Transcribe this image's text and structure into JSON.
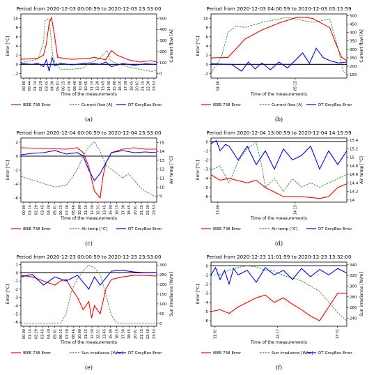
{
  "chart_data": [
    {
      "letter": "(a)",
      "type": "line",
      "title": "Period from 2020-12-03 00:00:59 to 2020-12-03 23:53:00",
      "xlabel": "Time of the measurements",
      "ylabel": "Error [°C]",
      "y2label": "Current flow [A]",
      "ylim": [
        -3,
        11
      ],
      "yticks": [
        -2,
        0,
        2,
        4,
        6,
        8,
        10
      ],
      "y2lim": [
        -40,
        540
      ],
      "y2ticks": [
        0,
        100,
        200,
        300,
        400,
        500
      ],
      "xticks": [
        "00:00",
        "00:44",
        "01:14",
        "02:29",
        "03:45",
        "04:30",
        "05:01",
        "06:15",
        "07:30",
        "08:46",
        "10:00",
        "10:45",
        "11:15",
        "12:30",
        "13:45",
        "14:30",
        "15:00",
        "16:15",
        "17:30",
        "18:45",
        "20:01",
        "21:15",
        "22:30",
        "23:53"
      ],
      "legend": [
        "IEEE 738 Error",
        "Current flow [A]",
        "DT GreyBox Error"
      ],
      "series": [
        {
          "name": "IEEE 738 Error",
          "axis": "left",
          "color": "#ff0000",
          "style": "solid",
          "x": [
            0,
            3,
            4,
            4.5,
            5,
            5.4,
            5.8,
            6.5,
            9,
            12,
            13,
            15,
            16,
            17,
            19,
            21,
            23,
            24
          ],
          "values": [
            1.1,
            1.3,
            2,
            4.5,
            9,
            10.2,
            7.5,
            1.5,
            1.1,
            1.3,
            1.5,
            1.0,
            3.0,
            2.0,
            1.0,
            0.5,
            0.8,
            0.5
          ]
        },
        {
          "name": "Current flow [A]",
          "axis": "right",
          "color": "#2e8b2e",
          "style": "dashed",
          "x": [
            0,
            3,
            4,
            4.3,
            4.6,
            5,
            5.6,
            6,
            7,
            9,
            11,
            12,
            14,
            15.2,
            15.8,
            17,
            19,
            21,
            23,
            24
          ],
          "values": [
            100,
            130,
            280,
            480,
            490,
            495,
            170,
            110,
            40,
            40,
            50,
            90,
            140,
            210,
            120,
            90,
            60,
            40,
            20,
            30
          ]
        },
        {
          "name": "DT GreyBox Error",
          "axis": "left",
          "color": "#0000ff",
          "style": "solid",
          "x": [
            0,
            2,
            3,
            4,
            4.5,
            5,
            5.5,
            6,
            7,
            9,
            12,
            14,
            15,
            16,
            18,
            20,
            22,
            24
          ],
          "values": [
            0.2,
            0.0,
            0.2,
            -0.5,
            1.0,
            -1.5,
            1.5,
            -0.3,
            0.2,
            -0.1,
            0.3,
            0.0,
            0.5,
            -0.5,
            0.2,
            -0.2,
            0.1,
            0.0
          ]
        }
      ]
    },
    {
      "letter": "(b)",
      "type": "line",
      "title": "Period from 2020-12-03 04:00:59 to 2020-12-03 05:15:59",
      "xlabel": "Time of the measurements",
      "ylabel": "Error [°C]",
      "y2label": "Current flow [A]",
      "ylim": [
        -3,
        11
      ],
      "yticks": [
        -2,
        0,
        2,
        4,
        6,
        8,
        10
      ],
      "y2lim": [
        130,
        510
      ],
      "y2ticks": [
        150,
        200,
        250,
        300,
        350,
        400,
        450,
        500
      ],
      "xticks": [
        "04:00",
        "05:15"
      ],
      "legend": [
        "IEEE 738 Error",
        "Current flow [A]",
        "DT GreyBox Error"
      ],
      "series": [
        {
          "name": "IEEE 738 Error",
          "axis": "left",
          "color": "#ff0000",
          "style": "solid",
          "x": [
            0,
            10,
            15,
            20,
            30,
            40,
            50,
            55,
            60,
            70,
            73,
            77,
            80
          ],
          "values": [
            1.4,
            1.5,
            3.5,
            5.5,
            7.5,
            9.0,
            10.2,
            10.3,
            10.0,
            8.0,
            5.0,
            1.5,
            0.8
          ]
        },
        {
          "name": "Current flow [A]",
          "axis": "right",
          "color": "#2e8b2e",
          "style": "dashed",
          "x": [
            0,
            6,
            10,
            15,
            20,
            30,
            40,
            45,
            55,
            60,
            70,
            75,
            78,
            80
          ],
          "values": [
            160,
            250,
            400,
            440,
            430,
            460,
            480,
            490,
            470,
            460,
            480,
            300,
            170,
            150
          ]
        },
        {
          "name": "DT GreyBox Error",
          "axis": "left",
          "color": "#0000ff",
          "style": "solid",
          "x": [
            0,
            12,
            18,
            22,
            26,
            30,
            35,
            40,
            45,
            50,
            54,
            58,
            62,
            66,
            70,
            75,
            80
          ],
          "values": [
            0.1,
            0.0,
            -1.5,
            0.5,
            -1.0,
            0.3,
            -1.2,
            0.5,
            -0.8,
            1.0,
            2.5,
            0.2,
            3.5,
            1.5,
            0.8,
            0.3,
            0.5
          ]
        }
      ]
    },
    {
      "letter": "(c)",
      "type": "line",
      "title": "Period from 2020-12-04 00:00:59 to 2020-12-04 23:53:00",
      "xlabel": "Time of the measurements",
      "ylabel": "Error [°C]",
      "y2label": "Air temp [°C]",
      "ylim": [
        -6.6,
        2.6
      ],
      "yticks": [
        -6,
        -4,
        -2,
        0,
        2
      ],
      "y2lim": [
        8.3,
        15.5
      ],
      "y2ticks": [
        9,
        10,
        11,
        12,
        13,
        14,
        15
      ],
      "xticks": [
        "00:00",
        "01:14",
        "02:29",
        "03:45",
        "04:30",
        "05:01",
        "06:15",
        "07:30",
        "08:46",
        "10:00",
        "11:15",
        "12:30",
        "12:31",
        "13:45",
        "15:00",
        "16:15",
        "17:30",
        "18:45",
        "20:01",
        "21:15",
        "22:30",
        "23:53"
      ],
      "legend": [
        "IEEE 738 Error",
        "Air temp [°C]",
        "DT GreyBox Error"
      ],
      "series": [
        {
          "name": "IEEE 738 Error",
          "axis": "left",
          "color": "#ff0000",
          "style": "solid",
          "x": [
            0,
            4,
            8,
            10,
            11,
            12,
            13,
            14,
            14.5,
            15,
            16,
            18,
            20,
            22,
            24
          ],
          "values": [
            1.2,
            1.1,
            1.0,
            1.2,
            0.5,
            -1.5,
            -5.0,
            -6.0,
            -3.0,
            -1.0,
            0.5,
            1.0,
            1.2,
            1.0,
            1.0
          ]
        },
        {
          "name": "Air temp [°C]",
          "axis": "right",
          "color": "#2e8b2e",
          "style": "dashed",
          "x": [
            0,
            2,
            4,
            6,
            8,
            9,
            10,
            11,
            12,
            13,
            14,
            15,
            16,
            17,
            18,
            19,
            20,
            21,
            22,
            23,
            24
          ],
          "values": [
            11.2,
            10.8,
            10.4,
            10.0,
            10.2,
            11.0,
            12.0,
            13.5,
            14.5,
            15.1,
            14.0,
            12.5,
            12.0,
            11.5,
            11.0,
            11.5,
            10.8,
            10.0,
            9.5,
            9.2,
            8.8
          ]
        },
        {
          "name": "DT GreyBox Error",
          "axis": "left",
          "color": "#0000ff",
          "style": "solid",
          "x": [
            0,
            2,
            4,
            6,
            8,
            10,
            11,
            12,
            13,
            14,
            15,
            16,
            18,
            20,
            22,
            24
          ],
          "values": [
            0.2,
            0.4,
            0.5,
            0.8,
            0.3,
            0.5,
            0.0,
            -2.0,
            -3.5,
            -2.5,
            -1.0,
            0.5,
            0.8,
            0.5,
            0.6,
            0.5
          ]
        }
      ]
    },
    {
      "letter": "(d)",
      "type": "line",
      "title": "Period from 2020-12-04 13:00:59 to 2020-12-04 14:15:59",
      "xlabel": "Time of the measurements",
      "ylabel": "Error [°C]",
      "y2label": "Air temp [°C]",
      "ylim": [
        -6.6,
        0.4
      ],
      "yticks": [
        -6,
        -5,
        -4,
        -3,
        -2,
        -1,
        0
      ],
      "y2lim": [
        13.95,
        15.45
      ],
      "y2ticks": [
        14.0,
        14.2,
        14.4,
        14.6,
        14.8,
        15.0,
        15.2,
        15.4
      ],
      "xticks": [
        "13:00",
        "14:15"
      ],
      "legend": [
        "IEEE 738 Error",
        "Air temp [°C]",
        "DT GreyBox Error"
      ],
      "series": [
        {
          "name": "IEEE 738 Error",
          "axis": "left",
          "color": "#ff0000",
          "style": "solid",
          "x": [
            0,
            5,
            10,
            20,
            25,
            30,
            35,
            40,
            50,
            60,
            65,
            70,
            75
          ],
          "values": [
            -3.6,
            -4.2,
            -4.0,
            -4.5,
            -4.2,
            -5.0,
            -5.5,
            -6.0,
            -6.0,
            -6.2,
            -6.0,
            -5.0,
            -4.6
          ]
        },
        {
          "name": "Air temp [°C]",
          "axis": "right",
          "color": "#2e8b2e",
          "style": "dashed",
          "x": [
            0,
            5,
            10,
            15,
            20,
            25,
            28,
            30,
            35,
            40,
            45,
            50,
            55,
            60,
            65,
            70,
            75
          ],
          "values": [
            14.7,
            14.8,
            14.4,
            14.9,
            15.2,
            15.35,
            14.8,
            14.3,
            14.5,
            14.2,
            14.5,
            14.3,
            14.4,
            14.3,
            14.4,
            14.5,
            14.6
          ]
        },
        {
          "name": "DT GreyBox Error",
          "axis": "left",
          "color": "#0000ff",
          "style": "solid",
          "x": [
            0,
            3,
            5,
            8,
            10,
            15,
            20,
            25,
            30,
            35,
            40,
            45,
            50,
            55,
            60,
            65,
            70,
            75
          ],
          "values": [
            -0.2,
            0.1,
            -1.0,
            -0.3,
            -0.5,
            -2.0,
            -0.5,
            -2.5,
            -1.0,
            -3.0,
            -0.8,
            -2.0,
            -1.5,
            -0.5,
            -3.0,
            -1.0,
            -2.5,
            -1.0
          ]
        }
      ]
    },
    {
      "letter": "(e)",
      "type": "line",
      "title": "Period from 2020-12-23 00:00:59 to 2020-12-23 23:53:00",
      "xlabel": "Time of the measurements",
      "ylabel": "Error [°C]",
      "y2label": "Sun irradiance [W/m]",
      "ylim": [
        -6.5,
        1.3
      ],
      "yticks": [
        -6,
        -5,
        -4,
        -3,
        -2,
        -1,
        0,
        1
      ],
      "y2lim": [
        -15,
        315
      ],
      "y2ticks": [
        0,
        50,
        100,
        150,
        200,
        250,
        300
      ],
      "xticks": [
        "00:00",
        "01:14",
        "02:29",
        "03:45",
        "04:30",
        "05:01",
        "06:15",
        "07:30",
        "08:46",
        "10:00",
        "11:15",
        "12:30",
        "12:31",
        "13:45",
        "15:00",
        "16:15",
        "17:30",
        "18:45",
        "20:01",
        "21:15",
        "22:30",
        "23:53"
      ],
      "legend": [
        "IEEE 738 Error",
        "Sun irradiance [W/m]",
        "DT GreyBox Error"
      ],
      "series": [
        {
          "name": "IEEE 738 Error",
          "axis": "left",
          "color": "#ff0000",
          "style": "solid",
          "x": [
            0,
            2,
            4,
            6,
            7,
            8,
            9,
            10,
            11,
            12,
            12.5,
            13,
            14,
            15,
            16,
            18,
            20,
            22,
            24
          ],
          "values": [
            -0.3,
            -0.5,
            -1.0,
            -1.5,
            -1.0,
            -0.8,
            -2.0,
            -3.0,
            -4.5,
            -3.5,
            -5.5,
            -4.0,
            -5.0,
            -2.0,
            -0.8,
            -0.5,
            -0.3,
            -0.3,
            -0.4
          ]
        },
        {
          "name": "Sun irradiance [W/m]",
          "axis": "right",
          "color": "#2e8b2e",
          "style": "dashed",
          "x": [
            0,
            7,
            8,
            9,
            10,
            11,
            12,
            13,
            14,
            15,
            16,
            17,
            24
          ],
          "values": [
            0,
            0,
            50,
            170,
            230,
            270,
            300,
            285,
            250,
            150,
            40,
            0,
            0
          ]
        },
        {
          "name": "DT GreyBox Error",
          "axis": "left",
          "color": "#0000ff",
          "style": "solid",
          "x": [
            0,
            2,
            4,
            6,
            8,
            10,
            12,
            13,
            14,
            16,
            18,
            20,
            22,
            24
          ],
          "values": [
            -0.5,
            -0.2,
            -1.5,
            -0.5,
            -1.0,
            -0.3,
            -2.0,
            -0.5,
            -1.5,
            0.2,
            0.3,
            0.1,
            0.0,
            0.0
          ]
        }
      ]
    },
    {
      "letter": "(f)",
      "type": "line",
      "title": "Period from 2020-12-23 11:01:59 to 2020-12-23 13:32:00",
      "xlabel": "Time of the measurements",
      "ylabel": "Error [°C]",
      "y2label": "Sun irradiance [W/m]",
      "ylim": [
        -6.6,
        0.4
      ],
      "yticks": [
        -6,
        -5,
        -4,
        -3,
        -2,
        -1,
        0
      ],
      "y2lim": [
        225,
        345
      ],
      "y2ticks": [
        240,
        260,
        280,
        300,
        320,
        340
      ],
      "xticks": [
        "11:01",
        "12:17",
        "13:32"
      ],
      "legend": [
        "IEEE 738 Error",
        "Sun irradiance [W/m]",
        "DT GreyBox Error"
      ],
      "series": [
        {
          "name": "IEEE 738 Error",
          "axis": "left",
          "color": "#ff0000",
          "style": "solid",
          "x": [
            0,
            10,
            20,
            30,
            40,
            50,
            60,
            70,
            80,
            90,
            100,
            110,
            120,
            130,
            140,
            150
          ],
          "values": [
            -5.0,
            -4.8,
            -5.2,
            -4.5,
            -4.0,
            -3.5,
            -3.2,
            -4.0,
            -3.5,
            -4.2,
            -4.8,
            -5.5,
            -6.0,
            -4.5,
            -3.0,
            -3.0
          ]
        },
        {
          "name": "Sun irradiance [W/m]",
          "axis": "right",
          "color": "#2e8b2e",
          "style": "dashed",
          "x": [
            0,
            10,
            20,
            30,
            40,
            50,
            60,
            70,
            80,
            90,
            100,
            110,
            120,
            130,
            140,
            150
          ],
          "values": [
            320,
            322,
            330,
            335,
            338,
            336,
            330,
            328,
            320,
            315,
            310,
            300,
            290,
            270,
            250,
            235
          ]
        },
        {
          "name": "DT GreyBox Error",
          "axis": "left",
          "color": "#0000ff",
          "style": "solid",
          "x": [
            0,
            5,
            10,
            15,
            20,
            25,
            30,
            40,
            50,
            60,
            70,
            80,
            90,
            100,
            110,
            120,
            130,
            140,
            150
          ],
          "values": [
            -1.0,
            -0.2,
            -1.5,
            -0.5,
            -2.0,
            -0.3,
            -1.0,
            -0.5,
            -1.8,
            -0.2,
            -1.0,
            -0.5,
            -1.5,
            -0.3,
            -1.2,
            -0.4,
            -1.0,
            -0.3,
            -0.8
          ]
        }
      ]
    }
  ]
}
